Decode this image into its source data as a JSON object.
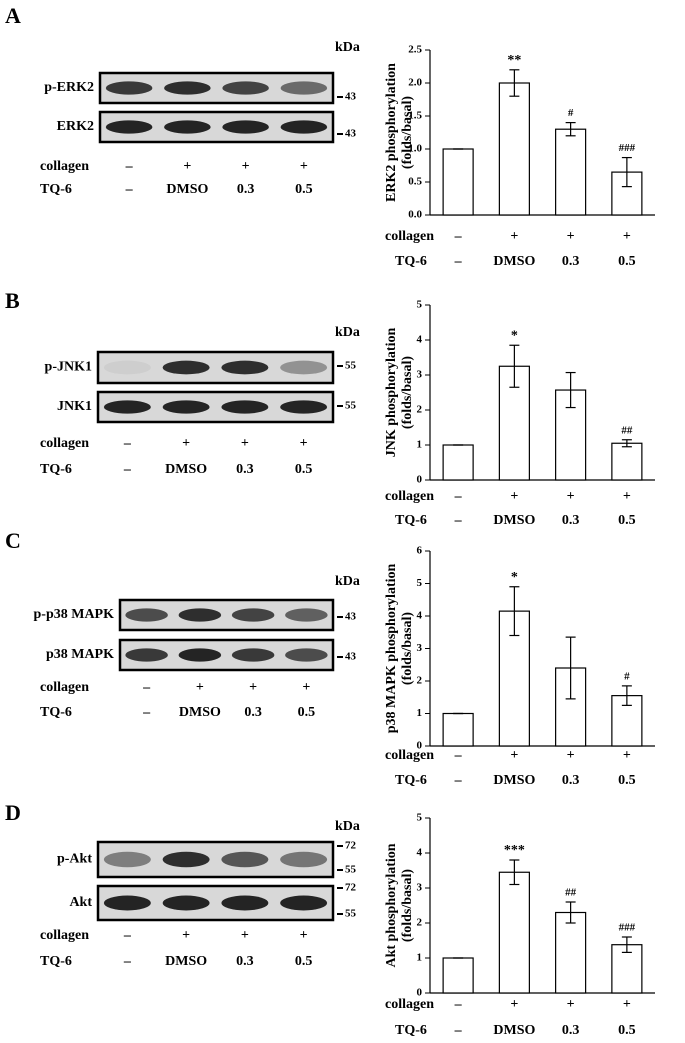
{
  "panels": [
    {
      "letter": "A",
      "kda": "kDa",
      "blots": [
        {
          "label": "p-ERK2",
          "markers": [
            "43"
          ]
        },
        {
          "label": "ERK2",
          "markers": [
            "43"
          ]
        }
      ],
      "conditions": [
        {
          "name": "collagen",
          "labels": [
            "–",
            "+",
            "+",
            "+"
          ]
        },
        {
          "name": "TQ-6",
          "labels": [
            "–",
            "DMSO",
            "0.3",
            "0.5"
          ]
        }
      ]
    },
    {
      "letter": "B",
      "kda": "kDa",
      "blots": [
        {
          "label": "p-JNK1",
          "markers": [
            "55"
          ]
        },
        {
          "label": "JNK1",
          "markers": [
            "55"
          ]
        }
      ],
      "conditions": [
        {
          "name": "collagen",
          "labels": [
            "–",
            "+",
            "+",
            "+"
          ]
        },
        {
          "name": "TQ-6",
          "labels": [
            "–",
            "DMSO",
            "0.3",
            "0.5"
          ]
        }
      ]
    },
    {
      "letter": "C",
      "kda": "kDa",
      "blots": [
        {
          "label": "p-p38 MAPK",
          "markers": [
            "43"
          ]
        },
        {
          "label": "p38 MAPK",
          "markers": [
            "43"
          ]
        }
      ],
      "conditions": [
        {
          "name": "collagen",
          "labels": [
            "–",
            "+",
            "+",
            "+"
          ]
        },
        {
          "name": "TQ-6",
          "labels": [
            "–",
            "DMSO",
            "0.3",
            "0.5"
          ]
        }
      ]
    },
    {
      "letter": "D",
      "kda": "kDa",
      "blots": [
        {
          "label": "p-Akt",
          "markers": [
            "72",
            "55"
          ]
        },
        {
          "label": "Akt",
          "markers": [
            "72",
            "55"
          ]
        }
      ],
      "conditions": [
        {
          "name": "collagen",
          "labels": [
            "–",
            "+",
            "+",
            "+"
          ]
        },
        {
          "name": "TQ-6",
          "labels": [
            "–",
            "DMSO",
            "0.3",
            "0.5"
          ]
        }
      ]
    }
  ],
  "chart_data": [
    {
      "type": "bar",
      "ylabel": [
        "ERK2 phosphorylation",
        "(folds/basal)"
      ],
      "category_rows": [
        {
          "name": "collagen",
          "labels": [
            "–",
            "+",
            "+",
            "+"
          ]
        },
        {
          "name": "TQ-6",
          "labels": [
            "–",
            "DMSO",
            "0.3",
            "0.5"
          ]
        }
      ],
      "values": [
        1,
        2.0,
        1.3,
        0.65
      ],
      "errors": [
        0,
        0.2,
        0.1,
        0.22
      ],
      "annotations": [
        null,
        "**",
        "#",
        "###"
      ],
      "color": "#ffffff",
      "ylim": [
        0,
        2.5
      ],
      "yticks": [
        {
          "value": 0,
          "label": "0.0"
        },
        {
          "value": 0.5,
          "label": "0.5"
        },
        {
          "value": 1,
          "label": "1.0"
        },
        {
          "value": 1.5,
          "label": "1.5"
        },
        {
          "value": 2,
          "label": "2.0"
        },
        {
          "value": 2.5,
          "label": "2.5"
        }
      ]
    },
    {
      "type": "bar",
      "ylabel": [
        "JNK phosphorylation",
        "(folds/basal)"
      ],
      "category_rows": [
        {
          "name": "collagen",
          "labels": [
            "–",
            "+",
            "+",
            "+"
          ]
        },
        {
          "name": "TQ-6",
          "labels": [
            "–",
            "DMSO",
            "0.3",
            "0.5"
          ]
        }
      ],
      "values": [
        1,
        3.25,
        2.57,
        1.05
      ],
      "errors": [
        0,
        0.6,
        0.5,
        0.1
      ],
      "annotations": [
        null,
        "*",
        null,
        "##"
      ],
      "color": "#ffffff",
      "ylim": [
        0,
        5
      ],
      "yticks": [
        0,
        1,
        2,
        3,
        4,
        5
      ]
    },
    {
      "type": "bar",
      "ylabel": [
        "p38 MAPK phosphorylation",
        "(folds/basal)"
      ],
      "category_rows": [
        {
          "name": "collagen",
          "labels": [
            "–",
            "+",
            "+",
            "+"
          ]
        },
        {
          "name": "TQ-6",
          "labels": [
            "–",
            "DMSO",
            "0.3",
            "0.5"
          ]
        }
      ],
      "values": [
        1,
        4.15,
        2.4,
        1.55
      ],
      "errors": [
        0,
        0.75,
        0.95,
        0.3
      ],
      "annotations": [
        null,
        "*",
        null,
        "#"
      ],
      "color": "#ffffff",
      "ylim": [
        0,
        6
      ],
      "yticks": [
        0,
        1,
        2,
        3,
        4,
        5,
        6
      ]
    },
    {
      "type": "bar",
      "ylabel": [
        "Akt phosphorylation",
        "(folds/basal)"
      ],
      "category_rows": [
        {
          "name": "collagen",
          "labels": [
            "–",
            "+",
            "+",
            "+"
          ]
        },
        {
          "name": "TQ-6",
          "labels": [
            "–",
            "DMSO",
            "0.3",
            "0.5"
          ]
        }
      ],
      "values": [
        1,
        3.45,
        2.3,
        1.38
      ],
      "errors": [
        0,
        0.35,
        0.3,
        0.22
      ],
      "annotations": [
        null,
        "***",
        "##",
        "###"
      ],
      "color": "#ffffff",
      "ylim": [
        0,
        5
      ],
      "yticks": [
        0,
        1,
        2,
        3,
        4,
        5
      ]
    }
  ]
}
